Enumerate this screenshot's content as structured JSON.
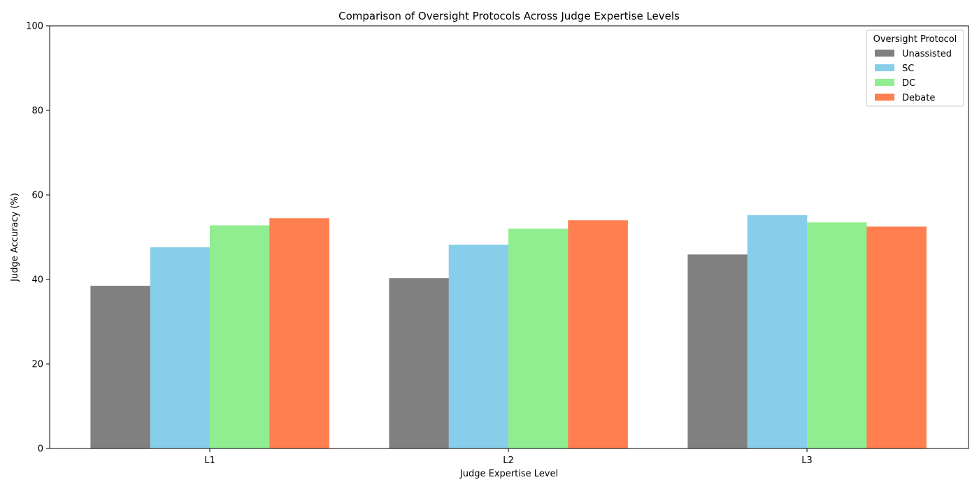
{
  "chart_data": {
    "type": "bar",
    "title": "Comparison of Oversight Protocols Across Judge Expertise Levels",
    "xlabel": "Judge Expertise Level",
    "ylabel": "Judge Accuracy (%)",
    "categories": [
      "L1",
      "L2",
      "L3"
    ],
    "ylim": [
      0,
      100
    ],
    "yticks": [
      0,
      20,
      40,
      60,
      80,
      100
    ],
    "grid": false,
    "legend": {
      "title": "Oversight Protocol",
      "placement": "top-right"
    },
    "series": [
      {
        "name": "Unassisted",
        "color": "#808080",
        "values": [
          38.5,
          40.3,
          45.9
        ]
      },
      {
        "name": "SC",
        "color": "#87ceeb",
        "values": [
          47.6,
          48.2,
          55.2
        ]
      },
      {
        "name": "DC",
        "color": "#90ee90",
        "values": [
          52.8,
          52.0,
          53.5
        ]
      },
      {
        "name": "Debate",
        "color": "#ff7f50",
        "values": [
          54.5,
          54.0,
          52.5
        ]
      }
    ]
  }
}
